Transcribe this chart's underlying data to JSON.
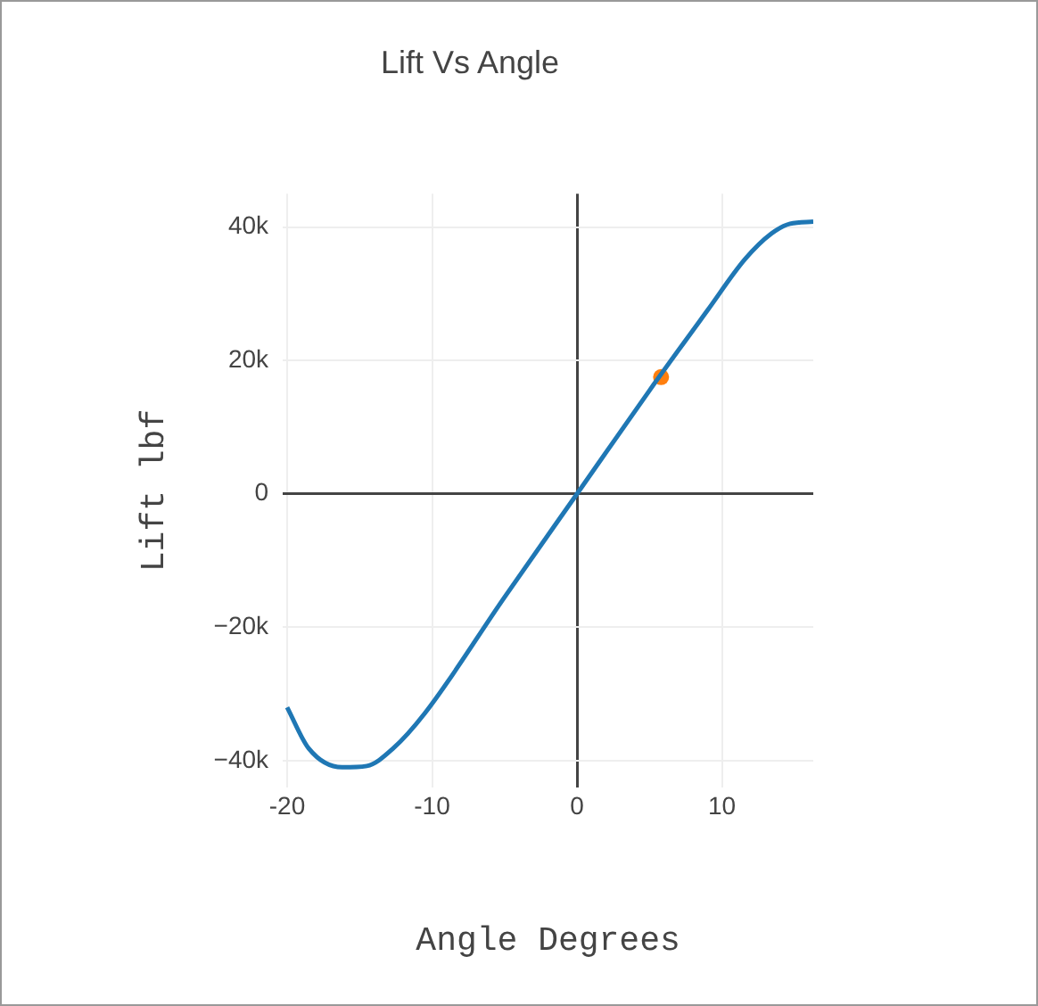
{
  "chart_data": {
    "type": "line",
    "title": "Lift Vs Angle",
    "xlabel": "Angle Degrees",
    "ylabel": "Lift lbf",
    "xlim": [
      -20.3,
      16.3
    ],
    "xticks": [
      -20,
      -10,
      0,
      10
    ],
    "ylim": [
      -44000,
      45000
    ],
    "yticks": [
      {
        "value": -40000,
        "label": "−40k"
      },
      {
        "value": -20000,
        "label": "−20k"
      },
      0,
      {
        "value": 20000,
        "label": "20k"
      },
      {
        "value": 40000,
        "label": "40k"
      }
    ],
    "grid": true,
    "legend": false,
    "series": [
      {
        "color": "#1f77b4",
        "marker": "none",
        "x": [
          -20,
          -18.5,
          -16.2,
          -14.5,
          -12.7,
          -10.5,
          -5,
          0,
          5,
          9,
          11.6,
          13.4,
          14.7,
          16.3
        ],
        "values": [
          -32000,
          -38200,
          -41000,
          -40800,
          -38200,
          -32900,
          -15500,
          0,
          15500,
          27500,
          35200,
          39000,
          40500,
          40800
        ]
      },
      {
        "type": "scatter",
        "color": "#ff7f0e",
        "marker": "circle",
        "x": [
          5.8
        ],
        "values": [
          17500
        ]
      }
    ]
  }
}
